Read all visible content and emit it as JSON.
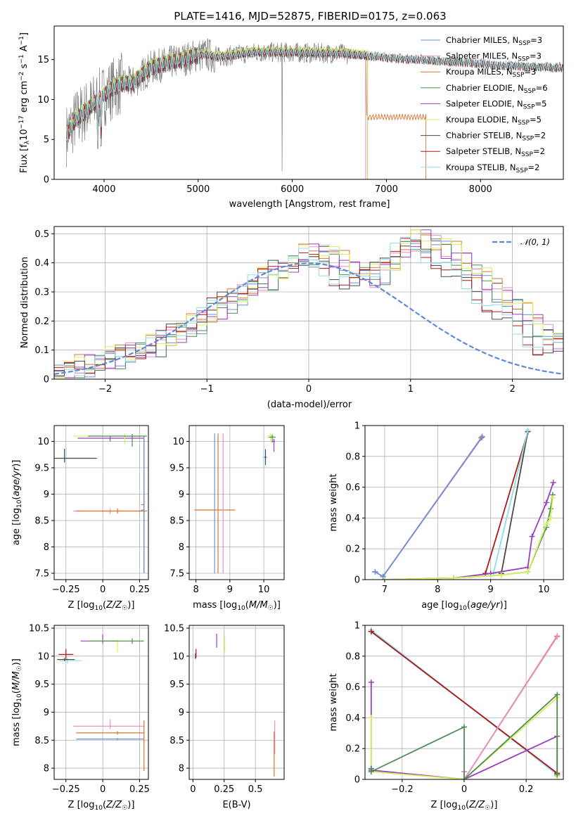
{
  "colors": {
    "Chabrier MILES": "#6b8fdc",
    "Salpeter MILES": "#e98fc4",
    "Kroupa MILES": "#d9742f",
    "Chabrier ELODIE": "#4f8a57",
    "Salpeter ELODIE": "#9b3fbf",
    "Kroupa ELODIE": "#d6f25a",
    "Chabrier STELIB": "#4a4a4a",
    "Salpeter STELIB": "#b01818",
    "Kroupa STELIB": "#8fdde4",
    "data": "#808080",
    "gauss": "#5f87dc"
  },
  "chart_data": [
    {
      "id": "spectrum",
      "type": "line",
      "title": "PLATE=1416, MJD=52875, FIBERID=0175, z=0.063",
      "xlabel": "wavelength [Angstrom, rest frame]",
      "ylabel": "Flux [fλ10⁻¹⁷ erg cm⁻² s⁻¹ A⁻¹]",
      "xlim": [
        3470,
        8880
      ],
      "ylim": [
        0,
        19.2
      ],
      "xticks": [
        4000,
        5000,
        6000,
        7000,
        8000
      ],
      "yticks": [
        0,
        5,
        10,
        15
      ],
      "legend_position": "top-right",
      "continuum_x": [
        3600,
        3700,
        3800,
        3900,
        4000,
        4100,
        4200,
        4300,
        4400,
        4500,
        4600,
        4700,
        4800,
        4900,
        5000,
        5100,
        5200,
        5400,
        5600,
        5800,
        6000,
        6200,
        6400,
        6600,
        6800,
        7000,
        7200,
        7400,
        7600,
        7800,
        8000,
        8200,
        8400,
        8600,
        8880
      ],
      "continuum_y": [
        5.5,
        7.5,
        8.5,
        9.5,
        10.5,
        11.5,
        12.0,
        12.0,
        13.0,
        14.0,
        14.3,
        14.6,
        14.9,
        15.2,
        15.6,
        15.6,
        15.3,
        15.6,
        15.9,
        15.9,
        15.9,
        15.8,
        15.8,
        15.7,
        15.5,
        15.3,
        15.1,
        15.0,
        14.8,
        14.7,
        14.5,
        14.3,
        14.2,
        14.1,
        14.0
      ],
      "series": [
        {
          "name": "Chabrier MILES, N_SSP=3",
          "label": "Chabrier MILES, N",
          "sub": "SSP",
          "tail": "=3",
          "end": 6780,
          "offset": 0.0
        },
        {
          "name": "Salpeter MILES, N_SSP=3",
          "label": "Salpeter MILES, N",
          "sub": "SSP",
          "tail": "=3",
          "end": 6780,
          "offset": 0.05
        },
        {
          "name": "Kroupa MILES, N_SSP=3",
          "label": "Kroupa MILES, N",
          "sub": "SSP",
          "tail": "=3",
          "end": 7420,
          "offset": 0.0,
          "tail_level": 7.8
        },
        {
          "name": "Chabrier ELODIE, N_SSP=6",
          "label": "Chabrier ELODIE, N",
          "sub": "SSP",
          "tail": "=6",
          "end": 6800,
          "offset": 0.1
        },
        {
          "name": "Salpeter ELODIE, N_SSP=5",
          "label": "Salpeter ELODIE, N",
          "sub": "SSP",
          "tail": "=5",
          "end": 6800,
          "offset": 0.15
        },
        {
          "name": "Kroupa ELODIE, N_SSP=5",
          "label": "Kroupa ELODIE, N",
          "sub": "SSP",
          "tail": "=5",
          "end": 6800,
          "offset": 0.3
        },
        {
          "name": "Chabrier STELIB, N_SSP=2",
          "label": "Chabrier STELIB, N",
          "sub": "SSP",
          "tail": "=2",
          "end": 8880,
          "offset": -0.1
        },
        {
          "name": "Salpeter STELIB, N_SSP=2",
          "label": "Salpeter STELIB, N",
          "sub": "SSP",
          "tail": "=2",
          "end": 8880,
          "offset": -0.05
        },
        {
          "name": "Kroupa STELIB, N_SSP=2",
          "label": "Kroupa STELIB, N",
          "sub": "SSP",
          "tail": "=2",
          "end": 8880,
          "offset": 0.0
        }
      ]
    },
    {
      "id": "residuals",
      "type": "histogram",
      "xlabel": "(data-model)/error",
      "ylabel": "Normed distribution",
      "xlim": [
        -2.5,
        2.5
      ],
      "ylim": [
        0,
        0.525
      ],
      "xticks": [
        -2,
        -1,
        0,
        1,
        2
      ],
      "yticks": [
        0.0,
        0.1,
        0.2,
        0.3,
        0.4,
        0.5
      ],
      "bin_width": 0.1,
      "legend_position": "top-right",
      "gauss_label": "𝒩(0, 1)",
      "profile": [
        0.02,
        0.03,
        0.04,
        0.05,
        0.06,
        0.07,
        0.08,
        0.09,
        0.1,
        0.11,
        0.12,
        0.14,
        0.16,
        0.18,
        0.2,
        0.22,
        0.24,
        0.27,
        0.29,
        0.31,
        0.34,
        0.35,
        0.37,
        0.4,
        0.42,
        0.43,
        0.44,
        0.42,
        0.4,
        0.37,
        0.36,
        0.35,
        0.37,
        0.4,
        0.45,
        0.47,
        0.48,
        0.47,
        0.45,
        0.43,
        0.4,
        0.37,
        0.34,
        0.31,
        0.28,
        0.25,
        0.22,
        0.19,
        0.16,
        0.13
      ]
    },
    {
      "id": "age-vs-Z",
      "type": "errorbar",
      "xlabel": "Z [log10(Z/Z☉)]",
      "ylabel": "age  [log10(age/yr)]",
      "xlim": [
        -0.33,
        0.31
      ],
      "ylim": [
        7.38,
        10.3
      ],
      "xticks": [
        -0.25,
        0.0,
        0.25
      ],
      "yticks": [
        7.5,
        8.0,
        8.5,
        9.0,
        9.5,
        10.0
      ],
      "points": [
        {
          "s": "Kroupa STELIB",
          "x": -0.25,
          "y": 9.68,
          "xe": [
            0.3,
            0.2
          ],
          "ye": [
            0.08,
            0.2
          ]
        },
        {
          "s": "Chabrier STELIB",
          "x": -0.26,
          "y": 9.68,
          "xe": [
            0.28,
            0.22
          ],
          "ye": [
            0.08,
            0.18
          ]
        },
        {
          "s": "Salpeter ELODIE",
          "x": 0.05,
          "y": 10.06,
          "xe": [
            0.22,
            0.23
          ],
          "ye": [
            0.06,
            0.05
          ]
        },
        {
          "s": "Kroupa ELODIE",
          "x": 0.15,
          "y": 10.1,
          "xe": [
            0.35,
            0.15
          ],
          "ye": [
            0.15,
            0.05
          ]
        },
        {
          "s": "Chabrier ELODIE",
          "x": 0.2,
          "y": 10.1,
          "xe": [
            0.3,
            0.1
          ],
          "ye": [
            0.2,
            0.04
          ]
        },
        {
          "s": "Salpeter MILES",
          "x": 0.05,
          "y": 8.68,
          "xe": [
            0.25,
            0.25
          ],
          "ye": [
            0.05,
            0.05
          ]
        },
        {
          "s": "Kroupa MILES",
          "x": 0.1,
          "y": 8.68,
          "xe": [
            0.28,
            0.2
          ],
          "ye": [
            0.05,
            0.05
          ]
        },
        {
          "s": "Kroupa MILES",
          "x": 0.28,
          "y": 8.8,
          "xe": [
            0.02,
            0.0
          ],
          "ye": [
            1.3,
            1.3
          ]
        },
        {
          "s": "Chabrier MILES",
          "x": 0.28,
          "y": 8.7,
          "xe": [
            0.02,
            0.0
          ],
          "ye": [
            1.2,
            1.4
          ]
        }
      ]
    },
    {
      "id": "age-vs-mass",
      "type": "errorbar",
      "xlabel": "mass [log10(M/M☉)]",
      "ylabel": "",
      "xlim": [
        7.8,
        10.6
      ],
      "ylim": [
        7.38,
        10.3
      ],
      "xticks": [
        8,
        9,
        10
      ],
      "yticks": [
        7.5,
        8.0,
        8.5,
        9.0,
        9.5,
        10.0
      ],
      "points": [
        {
          "s": "Chabrier MILES",
          "x": 8.55,
          "y": 8.7,
          "xe": [
            0.0,
            0.0
          ],
          "ye": [
            1.2,
            1.45
          ]
        },
        {
          "s": "Kroupa MILES",
          "x": 8.65,
          "y": 8.7,
          "xe": [
            0.7,
            0.5
          ],
          "ye": [
            1.2,
            1.45
          ]
        },
        {
          "s": "Salpeter MILES",
          "x": 8.8,
          "y": 8.7,
          "xe": [
            0.0,
            0.0
          ],
          "ye": [
            1.2,
            1.45
          ]
        },
        {
          "s": "Kroupa STELIB",
          "x": 10.0,
          "y": 9.7,
          "xe": [
            0.05,
            0.05
          ],
          "ye": [
            0.15,
            0.15
          ]
        },
        {
          "s": "Chabrier STELIB",
          "x": 10.05,
          "y": 9.7,
          "xe": [
            0.03,
            0.03
          ],
          "ye": [
            0.15,
            0.15
          ]
        },
        {
          "s": "Salpeter ELODIE",
          "x": 10.3,
          "y": 10.0,
          "xe": [
            0.05,
            0.03
          ],
          "ye": [
            0.2,
            0.05
          ]
        },
        {
          "s": "Kroupa ELODIE",
          "x": 10.2,
          "y": 10.1,
          "xe": [
            0.1,
            0.1
          ],
          "ye": [
            0.1,
            0.05
          ]
        },
        {
          "s": "Chabrier ELODIE",
          "x": 10.25,
          "y": 10.08,
          "xe": [
            0.1,
            0.1
          ],
          "ye": [
            0.1,
            0.05
          ]
        }
      ]
    },
    {
      "id": "weight-vs-age",
      "type": "line",
      "xlabel": "age  [log10(age/yr)]",
      "ylabel": "mass weight",
      "xlim": [
        6.63,
        10.37
      ],
      "ylim": [
        0.0,
        1.0
      ],
      "xticks": [
        7,
        8,
        9,
        10
      ],
      "yticks": [
        0.0,
        0.2,
        0.4,
        0.6,
        0.8,
        1.0
      ],
      "lines": [
        {
          "s": "Kroupa MILES",
          "x": [
            6.82,
            6.97,
            8.82
          ],
          "y": [
            0.05,
            0.02,
            0.92
          ]
        },
        {
          "s": "Salpeter MILES",
          "x": [
            6.82,
            6.97,
            8.84
          ],
          "y": [
            0.05,
            0.02,
            0.93
          ]
        },
        {
          "s": "Chabrier MILES",
          "x": [
            6.82,
            6.97,
            8.84
          ],
          "y": [
            0.05,
            0.02,
            0.925
          ]
        },
        {
          "s": "Salpeter STELIB",
          "x": [
            8.9,
            9.7
          ],
          "y": [
            0.04,
            0.96
          ]
        },
        {
          "s": "Chabrier STELIB",
          "x": [
            9.2,
            9.7
          ],
          "y": [
            0.04,
            0.96
          ]
        },
        {
          "s": "Kroupa STELIB",
          "x": [
            9.05,
            9.7
          ],
          "y": [
            0.04,
            0.97
          ]
        },
        {
          "s": "Salpeter ELODIE",
          "x": [
            7.0,
            8.3,
            9.0,
            9.7,
            9.78,
            10.05,
            10.18
          ],
          "y": [
            0.0,
            0.01,
            0.04,
            0.08,
            0.28,
            0.5,
            0.63
          ]
        },
        {
          "s": "Chabrier ELODIE",
          "x": [
            7.0,
            8.3,
            9.2,
            9.7,
            10.05,
            10.13,
            10.17
          ],
          "y": [
            0.0,
            0.01,
            0.03,
            0.05,
            0.34,
            0.46,
            0.55
          ]
        },
        {
          "s": "Kroupa ELODIE",
          "x": [
            7.0,
            8.3,
            9.2,
            9.7,
            10.05,
            10.13,
            10.17
          ],
          "y": [
            0.0,
            0.01,
            0.03,
            0.05,
            0.36,
            0.4,
            0.53
          ]
        }
      ]
    },
    {
      "id": "mass-vs-Z",
      "type": "errorbar",
      "xlabel": "Z [log10(Z/Z☉)]",
      "ylabel": "mass [log10(M/M☉)]",
      "xlim": [
        -0.33,
        0.31
      ],
      "ylim": [
        7.8,
        10.55
      ],
      "xticks": [
        -0.25,
        0.0,
        0.25
      ],
      "yticks": [
        8.0,
        8.5,
        9.0,
        9.5,
        10.0,
        10.5
      ],
      "points": [
        {
          "s": "Salpeter STELIB",
          "x": -0.25,
          "y": 10.03,
          "xe": [
            0.05,
            0.05
          ],
          "ye": [
            0.1,
            0.1
          ]
        },
        {
          "s": "Kroupa STELIB",
          "x": -0.24,
          "y": 9.92,
          "xe": [
            0.06,
            0.1
          ],
          "ye": [
            0.05,
            0.05
          ]
        },
        {
          "s": "Chabrier STELIB",
          "x": -0.26,
          "y": 9.94,
          "xe": [
            0.05,
            0.07
          ],
          "ye": [
            0.03,
            0.03
          ]
        },
        {
          "s": "Salpeter ELODIE",
          "x": 0.0,
          "y": 10.27,
          "xe": [
            0.15,
            0.1
          ],
          "ye": [
            0.05,
            0.12
          ]
        },
        {
          "s": "Kroupa ELODIE",
          "x": 0.1,
          "y": 10.27,
          "xe": [
            0.2,
            0.18
          ],
          "ye": [
            0.2,
            0.03
          ]
        },
        {
          "s": "Chabrier ELODIE",
          "x": 0.2,
          "y": 10.27,
          "xe": [
            0.3,
            0.08
          ],
          "ye": [
            0.05,
            0.05
          ]
        },
        {
          "s": "Salpeter MILES",
          "x": 0.05,
          "y": 8.75,
          "xe": [
            0.25,
            0.23
          ],
          "ye": [
            0.05,
            0.12
          ]
        },
        {
          "s": "Kroupa MILES",
          "x": 0.1,
          "y": 8.63,
          "xe": [
            0.28,
            0.18
          ],
          "ye": [
            0.03,
            0.03
          ]
        },
        {
          "s": "Chabrier MILES",
          "x": 0.1,
          "y": 8.52,
          "xe": [
            0.28,
            0.18
          ],
          "ye": [
            0.02,
            0.02
          ]
        },
        {
          "s": "Kroupa MILES",
          "x": 0.28,
          "y": 8.6,
          "xe": [
            0.0,
            0.0
          ],
          "ye": [
            0.65,
            0.25
          ]
        }
      ]
    },
    {
      "id": "mass-vs-ebv",
      "type": "errorbar",
      "xlabel": "E(B-V)",
      "ylabel": "",
      "xlim": [
        -0.03,
        0.73
      ],
      "ylim": [
        7.8,
        10.55
      ],
      "xticks": [
        0.0,
        0.25,
        0.5
      ],
      "yticks": [
        8.0,
        8.5,
        9.0,
        9.5,
        10.0,
        10.5
      ],
      "points": [
        {
          "s": "Chabrier STELIB",
          "x": 0.02,
          "y": 10.0,
          "xe": [
            0.0,
            0.0
          ],
          "ye": [
            0.05,
            0.05
          ]
        },
        {
          "s": "Salpeter STELIB",
          "x": 0.025,
          "y": 10.05,
          "xe": [
            0.0,
            0.0
          ],
          "ye": [
            0.08,
            0.08
          ]
        },
        {
          "s": "Salpeter ELODIE",
          "x": 0.19,
          "y": 10.25,
          "xe": [
            0.0,
            0.0
          ],
          "ye": [
            0.1,
            0.15
          ]
        },
        {
          "s": "Kroupa ELODIE",
          "x": 0.255,
          "y": 10.22,
          "xe": [
            0.0,
            0.0
          ],
          "ye": [
            0.15,
            0.15
          ]
        },
        {
          "s": "Salpeter MILES",
          "x": 0.655,
          "y": 8.7,
          "xe": [
            0.0,
            0.0
          ],
          "ye": [
            0.45,
            0.15
          ]
        },
        {
          "s": "Kroupa MILES",
          "x": 0.65,
          "y": 8.3,
          "xe": [
            0.0,
            0.0
          ],
          "ye": [
            0.45,
            0.35
          ]
        }
      ]
    },
    {
      "id": "weight-vs-Z",
      "type": "line",
      "xlabel": "Z [log10(Z/Z☉)]",
      "ylabel": "mass weight",
      "xlim": [
        -0.32,
        0.32
      ],
      "ylim": [
        0.0,
        1.0
      ],
      "xticks": [
        -0.2,
        0.0,
        0.2
      ],
      "yticks": [
        0.0,
        0.2,
        0.4,
        0.6,
        0.8,
        1.0
      ],
      "lines": [
        {
          "s": "Chabrier STELIB",
          "x": [
            -0.3,
            0.3
          ],
          "y": [
            0.96,
            0.04
          ]
        },
        {
          "s": "Kroupa STELIB",
          "x": [
            -0.3,
            0.3
          ],
          "y": [
            0.97,
            0.03
          ]
        },
        {
          "s": "Salpeter STELIB",
          "x": [
            -0.3,
            0.3
          ],
          "y": [
            0.96,
            0.04
          ]
        },
        {
          "s": "Kroupa MILES",
          "x": [
            0.0,
            0.0,
            0.3
          ],
          "y": [
            0.05,
            0.0,
            0.93
          ]
        },
        {
          "s": "Salpeter MILES",
          "x": [
            0.0,
            0.0,
            0.3
          ],
          "y": [
            0.05,
            0.0,
            0.925
          ]
        },
        {
          "s": "Salpeter ELODIE",
          "x": [
            -0.3,
            -0.3,
            -0.3,
            0.0,
            0.3,
            0.3
          ],
          "y": [
            0.63,
            0.07,
            0.06,
            0.0,
            0.28,
            0.03
          ]
        },
        {
          "s": "Kroupa ELODIE",
          "x": [
            -0.3,
            -0.3,
            0.0,
            0.3,
            0.3
          ],
          "y": [
            0.4,
            0.05,
            0.0,
            0.53,
            0.02
          ]
        },
        {
          "s": "Chabrier ELODIE",
          "x": [
            -0.3,
            -0.3,
            0.0,
            0.0,
            0.3,
            0.3
          ],
          "y": [
            0.07,
            0.05,
            0.34,
            0.0,
            0.55,
            0.03
          ]
        }
      ]
    }
  ]
}
